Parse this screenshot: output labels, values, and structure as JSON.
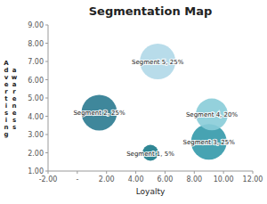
{
  "chart_data": {
    "type": "bubble",
    "title": "Segmentation Map",
    "xlabel": "Loyalty",
    "ylabel": "Advertising awareness",
    "x": [
      5.0,
      1.5,
      9.0,
      9.2,
      5.5
    ],
    "values": [
      2.0,
      4.2,
      2.6,
      4.1,
      7.0
    ],
    "sizes": [
      5,
      25,
      25,
      20,
      25
    ],
    "labels": [
      "Segment 1, 5%",
      "Segment 2, 25%",
      "Segment 3, 25%",
      "Segment 4, 20%",
      "Segment 5, 25%"
    ],
    "colors": [
      "#1a7a8a",
      "#2a7a90",
      "#3399aa",
      "#88ccd8",
      "#b0d8e8"
    ],
    "xlim": [
      -2,
      12
    ],
    "ylim": [
      1,
      9
    ],
    "xticks": [
      {
        "value": -2,
        "label": "-2.00"
      },
      {
        "value": 0,
        "label": "-"
      },
      {
        "value": 2,
        "label": "2.00"
      },
      {
        "value": 4,
        "label": "4.00"
      },
      {
        "value": 6,
        "label": "6.00"
      },
      {
        "value": 8,
        "label": "8.00"
      },
      {
        "value": 10,
        "label": "10.00"
      },
      {
        "value": 12,
        "label": "12.00"
      }
    ],
    "yticks": [
      {
        "value": 1,
        "label": "1.00"
      },
      {
        "value": 2,
        "label": "2.00"
      },
      {
        "value": 3,
        "label": "3.00"
      },
      {
        "value": 4,
        "label": "4.00"
      },
      {
        "value": 5,
        "label": "5.00"
      },
      {
        "value": 6,
        "label": "6.00"
      },
      {
        "value": 7,
        "label": "7.00"
      },
      {
        "value": 8,
        "label": "8.00"
      },
      {
        "value": 9,
        "label": "9.00"
      }
    ],
    "grid": false
  }
}
